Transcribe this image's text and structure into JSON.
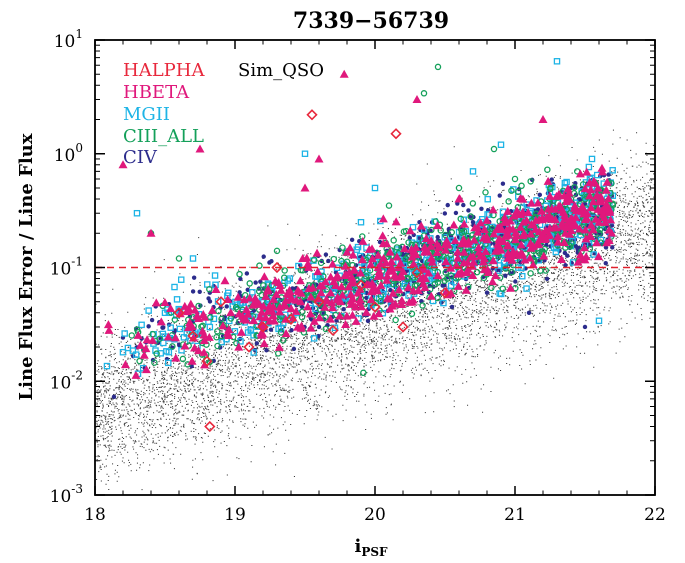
{
  "chart_data": {
    "type": "scatter",
    "title": "7339−56739",
    "xlabel_main": "i",
    "xlabel_sub": "PSF",
    "ylabel": "Line Flux Error / Line Flux",
    "xlim": [
      18,
      22
    ],
    "ylim": [
      0.001,
      10
    ],
    "yscale": "log",
    "x_ticks": [
      18,
      19,
      20,
      21,
      22
    ],
    "y_ticks": [
      {
        "value": 0.001,
        "base": "10",
        "exp": "-3"
      },
      {
        "value": 0.01,
        "base": "10",
        "exp": "-2"
      },
      {
        "value": 0.1,
        "base": "10",
        "exp": "-1"
      },
      {
        "value": 1,
        "base": "10",
        "exp": "0"
      },
      {
        "value": 10,
        "base": "10",
        "exp": "1"
      }
    ],
    "threshold": {
      "y": 0.1,
      "color": "#e0202c",
      "style": "dashed"
    },
    "legend": [
      {
        "label": "HALPHA",
        "color": "#e8283c"
      },
      {
        "label": "HBETA",
        "color": "#e0187c"
      },
      {
        "label": "MGII",
        "color": "#1eb4e6"
      },
      {
        "label": "CIII_ALL",
        "color": "#14a05a"
      },
      {
        "label": "CIV",
        "color": "#2c2c8c"
      },
      {
        "label": "Sim_QSO",
        "color": "#000000"
      }
    ],
    "series": [
      {
        "name": "HALPHA",
        "marker": "diamond",
        "color": "#e8283c",
        "points": [
          [
            18.82,
            0.004
          ],
          [
            19.55,
            2.2
          ],
          [
            20.15,
            1.5
          ],
          [
            18.6,
            0.04
          ],
          [
            18.8,
            0.015
          ],
          [
            19.1,
            0.02
          ],
          [
            19.3,
            0.1
          ],
          [
            19.6,
            0.05
          ],
          [
            19.9,
            0.07
          ],
          [
            20.2,
            0.03
          ],
          [
            18.7,
            0.025
          ],
          [
            19.4,
            0.035
          ],
          [
            20.5,
            0.06
          ],
          [
            20.0,
            0.045
          ],
          [
            19.2,
            0.03
          ],
          [
            18.9,
            0.05
          ],
          [
            20.3,
            0.09
          ],
          [
            19.7,
            0.028
          ]
        ]
      },
      {
        "name": "HBETA",
        "marker": "triangle",
        "color": "#e0187c",
        "points": [
          [
            19.78,
            5.0
          ],
          [
            18.2,
            0.8
          ],
          [
            18.75,
            1.1
          ],
          [
            21.2,
            2.0
          ],
          [
            20.3,
            3.0
          ],
          [
            19.6,
            0.9
          ],
          [
            18.1,
            0.028
          ],
          [
            18.4,
            0.2
          ],
          [
            19.5,
            0.5
          ],
          [
            20.6,
            0.4
          ],
          [
            21.5,
            0.3
          ],
          [
            21.6,
            0.25
          ]
        ]
      },
      {
        "name": "MGII",
        "marker": "square",
        "color": "#1eb4e6",
        "points": [
          [
            21.3,
            6.5
          ],
          [
            18.3,
            0.3
          ],
          [
            18.7,
            0.12
          ],
          [
            19.5,
            1.0
          ],
          [
            20.0,
            0.5
          ],
          [
            20.9,
            1.2
          ],
          [
            21.55,
            0.9
          ],
          [
            21.6,
            0.034
          ],
          [
            18.2,
            0.018
          ],
          [
            18.5,
            0.04
          ],
          [
            20.7,
            0.7
          ],
          [
            19.9,
            0.25
          ]
        ]
      },
      {
        "name": "CIII_ALL",
        "marker": "circle-open",
        "color": "#14a05a",
        "points": [
          [
            20.45,
            5.8
          ],
          [
            20.35,
            3.4
          ],
          [
            18.4,
            0.2
          ],
          [
            20.85,
            1.1
          ],
          [
            21.0,
            0.6
          ],
          [
            20.1,
            0.35
          ],
          [
            18.6,
            0.12
          ],
          [
            19.3,
            0.14
          ],
          [
            21.4,
            0.4
          ],
          [
            20.6,
            0.5
          ]
        ]
      },
      {
        "name": "CIV",
        "marker": "dot",
        "color": "#2c2c8c",
        "points": [
          [
            20.55,
            0.045
          ],
          [
            21.5,
            0.03
          ],
          [
            21.1,
            0.04
          ],
          [
            20.8,
            0.06
          ],
          [
            19.9,
            0.06
          ],
          [
            21.4,
            0.5
          ],
          [
            20.7,
            0.25
          ],
          [
            21.65,
            0.15
          ],
          [
            20.2,
            0.08
          ],
          [
            19.6,
            0.03
          ]
        ]
      },
      {
        "name": "Sim_QSO",
        "marker": "pixel",
        "color": "#000000",
        "trend": "density"
      }
    ]
  }
}
